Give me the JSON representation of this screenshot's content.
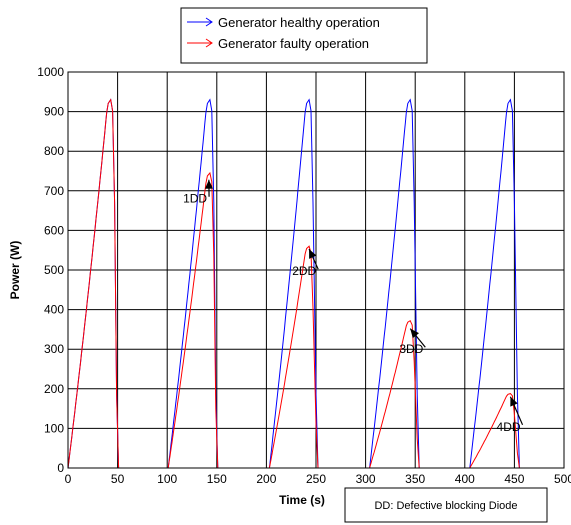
{
  "chart_data": {
    "type": "line",
    "xlabel": "Time (s)",
    "ylabel": "Power (W)",
    "xlim": [
      0,
      500
    ],
    "ylim": [
      0,
      1000
    ],
    "xticks": [
      0,
      50,
      100,
      150,
      200,
      250,
      300,
      350,
      400,
      450,
      500
    ],
    "yticks": [
      0,
      100,
      200,
      300,
      400,
      500,
      600,
      700,
      800,
      900,
      1000
    ],
    "grid": true,
    "legend_position": "top-center",
    "series": [
      {
        "name": "Generator healthy operation",
        "color": "#0000ff",
        "cycles": [
          {
            "start": 0,
            "peak_time": 43,
            "peak": 930,
            "end": 51
          },
          {
            "start": 101,
            "peak_time": 143,
            "peak": 930,
            "end": 151
          },
          {
            "start": 203,
            "peak_time": 243,
            "peak": 930,
            "end": 252
          },
          {
            "start": 304,
            "peak_time": 345,
            "peak": 930,
            "end": 354
          },
          {
            "start": 405,
            "peak_time": 446,
            "peak": 930,
            "end": 455
          }
        ]
      },
      {
        "name": "Generator faulty operation",
        "color": "#ff0000",
        "cycles": [
          {
            "start": 0,
            "peak_time": 43,
            "peak": 930,
            "end": 51
          },
          {
            "start": 101,
            "peak_time": 143,
            "peak": 745,
            "end": 151
          },
          {
            "start": 203,
            "peak_time": 243,
            "peak": 560,
            "end": 252
          },
          {
            "start": 304,
            "peak_time": 345,
            "peak": 372,
            "end": 354
          },
          {
            "start": 405,
            "peak_time": 446,
            "peak": 188,
            "end": 455
          }
        ]
      }
    ],
    "annotations": [
      {
        "text": "1DD",
        "x": 116,
        "y": 680,
        "arrow_to": [
          142,
          728
        ]
      },
      {
        "text": "2DD",
        "x": 226,
        "y": 497,
        "arrow_to": [
          243,
          553
        ]
      },
      {
        "text": "3DD",
        "x": 334,
        "y": 300,
        "arrow_to": [
          345,
          352
        ]
      },
      {
        "text": "4DD",
        "x": 432,
        "y": 104,
        "arrow_to": [
          446,
          180
        ]
      }
    ],
    "note": "DD: Defective blocking Diode"
  }
}
